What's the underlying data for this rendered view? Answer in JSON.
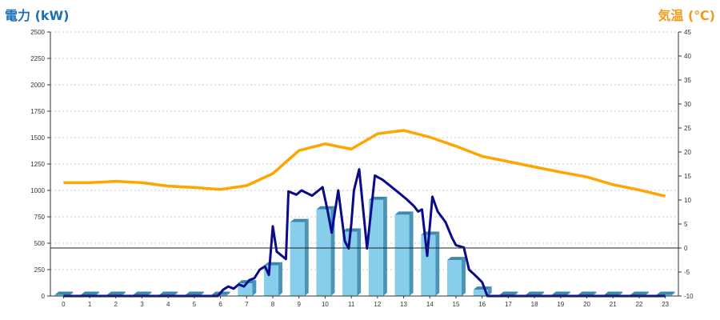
{
  "chart_data": {
    "type": "bar",
    "ylabel": "電力 (kW)",
    "ylabel_right": "気温 (℃)",
    "categories": [
      "0",
      "1",
      "2",
      "3",
      "4",
      "5",
      "6",
      "7",
      "8",
      "9",
      "10",
      "11",
      "12",
      "13",
      "14",
      "15",
      "16",
      "17",
      "18",
      "19",
      "20",
      "21",
      "22",
      "23"
    ],
    "ylim": [
      0,
      2500
    ],
    "y_ticks": [
      "0",
      "250",
      "500",
      "750",
      "1000",
      "1250",
      "1500",
      "1750",
      "2000",
      "2250",
      "2500"
    ],
    "y2lim": [
      -10,
      45
    ],
    "y2_ticks": [
      "-10",
      "-5",
      "0",
      "5",
      "10",
      "15",
      "20",
      "25",
      "30",
      "35",
      "40",
      "45"
    ],
    "grid": true,
    "series": [
      {
        "kind": "bar",
        "values": [
          0,
          0,
          0,
          0,
          0,
          0,
          10,
          120,
          290,
          700,
          820,
          610,
          910,
          770,
          580,
          340,
          60,
          0,
          0,
          0,
          0,
          0,
          0,
          0
        ]
      },
      {
        "kind": "line",
        "axis": "left",
        "x": [
          0,
          1,
          2,
          3,
          4,
          5,
          5.9,
          6.1,
          6.3,
          6.5,
          6.7,
          6.9,
          7.1,
          7.3,
          7.5,
          7.7,
          7.85,
          8.0,
          8.15,
          8.5,
          8.6,
          8.9,
          9.1,
          9.5,
          9.75,
          9.9,
          10.1,
          10.25,
          10.5,
          10.75,
          10.9,
          11.0,
          11.1,
          11.3,
          11.6,
          11.9,
          12.2,
          12.5,
          12.8,
          13.1,
          13.4,
          13.55,
          13.7,
          13.9,
          14.1,
          14.3,
          14.6,
          14.85,
          15.0,
          15.3,
          15.5,
          15.8,
          16.0,
          16.2,
          17,
          18,
          19,
          20,
          21,
          22,
          23
        ],
        "y": [
          0,
          0,
          0,
          0,
          0,
          0,
          0,
          60,
          90,
          70,
          110,
          90,
          150,
          170,
          250,
          280,
          200,
          660,
          420,
          350,
          990,
          960,
          1000,
          950,
          1000,
          1030,
          800,
          600,
          1000,
          520,
          450,
          680,
          1000,
          1200,
          450,
          1140,
          1100,
          1040,
          980,
          920,
          850,
          800,
          820,
          380,
          940,
          800,
          700,
          550,
          480,
          460,
          250,
          180,
          130,
          0,
          0,
          0,
          0,
          0,
          0,
          0,
          0
        ]
      },
      {
        "kind": "line",
        "axis": "right",
        "x": [
          0,
          1,
          2,
          3,
          4,
          5,
          6,
          7,
          8,
          9,
          10,
          11,
          12,
          13,
          14,
          15,
          16,
          17,
          18,
          19,
          20,
          21,
          22,
          23
        ],
        "y": [
          13.6,
          13.6,
          13.9,
          13.6,
          12.9,
          12.6,
          12.2,
          13,
          15.5,
          20.3,
          21.7,
          20.6,
          23.8,
          24.5,
          23.1,
          21.2,
          19.1,
          18,
          16.9,
          15.8,
          14.8,
          13.2,
          12.1,
          10.8
        ]
      }
    ],
    "colors": {
      "bar": "#87ceeb",
      "power_line": "#0a0a8a",
      "temperature_line": "#ffa500",
      "left_label": "#1e6fb5",
      "right_label": "#f29a1a"
    }
  }
}
